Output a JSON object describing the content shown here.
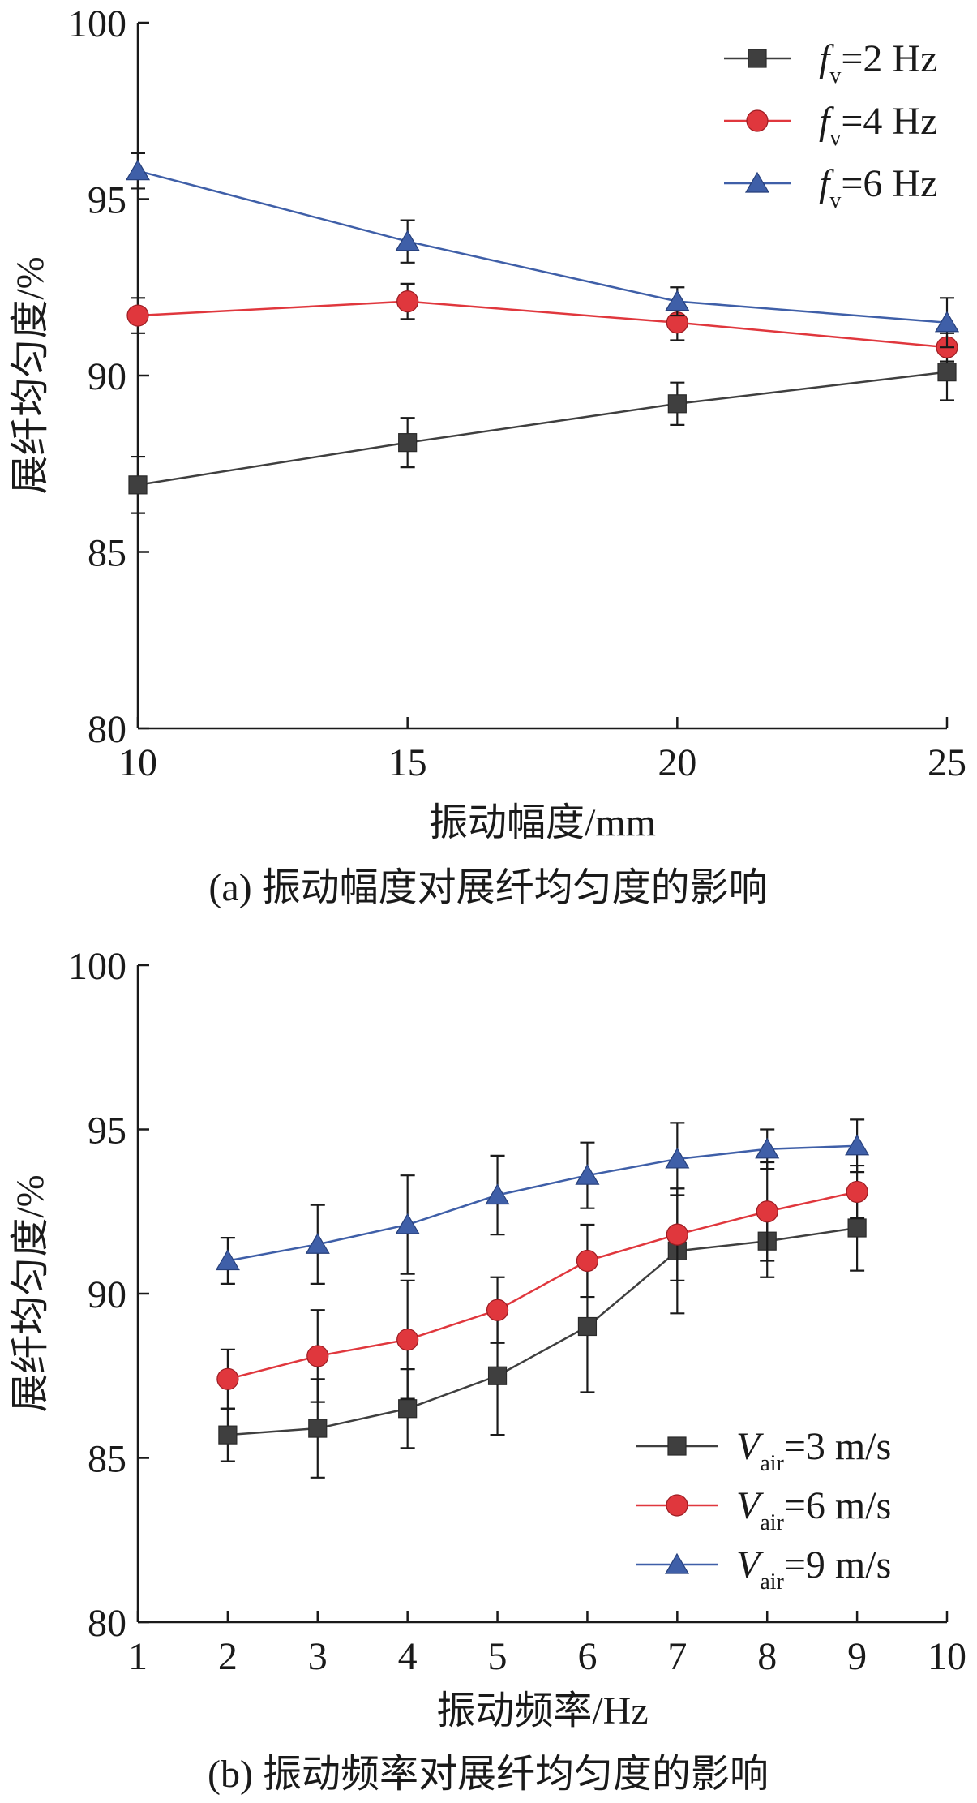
{
  "chart_data": [
    {
      "type": "line",
      "caption": "(a) 振动幅度对展纤均匀度的影响",
      "xlabel": "振动幅度/mm",
      "ylabel": "展纤均匀度/%",
      "xlim": [
        10,
        25
      ],
      "ylim": [
        80,
        100
      ],
      "xticks": [
        10,
        15,
        20,
        25
      ],
      "yticks": [
        80,
        85,
        90,
        95,
        100
      ],
      "x": [
        10,
        15,
        20,
        25
      ],
      "legend_position": "top-right",
      "series": [
        {
          "name": "=2 Hz",
          "symbol": "f",
          "subscript": "v",
          "marker": "square",
          "color": "#3f3f3f",
          "values": [
            86.9,
            88.1,
            89.2,
            90.1
          ],
          "errors": [
            0.8,
            0.7,
            0.6,
            0.8
          ]
        },
        {
          "name": "=4 Hz",
          "symbol": "f",
          "subscript": "v",
          "marker": "circle",
          "color": "#e0373d",
          "values": [
            91.7,
            92.1,
            91.5,
            90.8
          ],
          "errors": [
            0.5,
            0.5,
            0.5,
            0.4
          ]
        },
        {
          "name": "=6 Hz",
          "symbol": "f",
          "subscript": "v",
          "marker": "triangle",
          "color": "#3f5fa8",
          "values": [
            95.8,
            93.8,
            92.1,
            91.5
          ],
          "errors": [
            0.5,
            0.6,
            0.4,
            0.7
          ]
        }
      ]
    },
    {
      "type": "line",
      "caption": "(b) 振动频率对展纤均匀度的影响",
      "xlabel": "振动频率/Hz",
      "ylabel": "展纤均匀度/%",
      "xlim": [
        1,
        10
      ],
      "ylim": [
        80,
        100
      ],
      "xticks": [
        1,
        2,
        3,
        4,
        5,
        6,
        7,
        8,
        9,
        10
      ],
      "yticks": [
        80,
        85,
        90,
        95,
        100
      ],
      "x": [
        2,
        3,
        4,
        5,
        6,
        7,
        8,
        9
      ],
      "legend_position": "bottom-right",
      "series": [
        {
          "name": "=3 m/s",
          "symbol": "V",
          "subscript": "air",
          "marker": "square",
          "color": "#3f3f3f",
          "values": [
            85.7,
            85.9,
            86.5,
            87.5,
            89.0,
            91.3,
            91.6,
            92.0
          ],
          "errors": [
            0.8,
            1.5,
            1.2,
            1.8,
            2.0,
            1.9,
            1.1,
            1.3
          ]
        },
        {
          "name": "=6 m/s",
          "symbol": "V",
          "subscript": "air",
          "marker": "circle",
          "color": "#e0373d",
          "values": [
            87.4,
            88.1,
            88.6,
            89.5,
            91.0,
            91.8,
            92.5,
            93.1
          ],
          "errors": [
            0.9,
            1.4,
            1.8,
            1.0,
            1.1,
            1.4,
            1.5,
            0.8
          ]
        },
        {
          "name": "=9 m/s",
          "symbol": "V",
          "subscript": "air",
          "marker": "triangle",
          "color": "#3f5fa8",
          "values": [
            91.0,
            91.5,
            92.1,
            93.0,
            93.6,
            94.1,
            94.4,
            94.5
          ],
          "errors": [
            0.7,
            1.2,
            1.5,
            1.2,
            1.0,
            1.1,
            0.6,
            0.8
          ]
        }
      ]
    }
  ]
}
